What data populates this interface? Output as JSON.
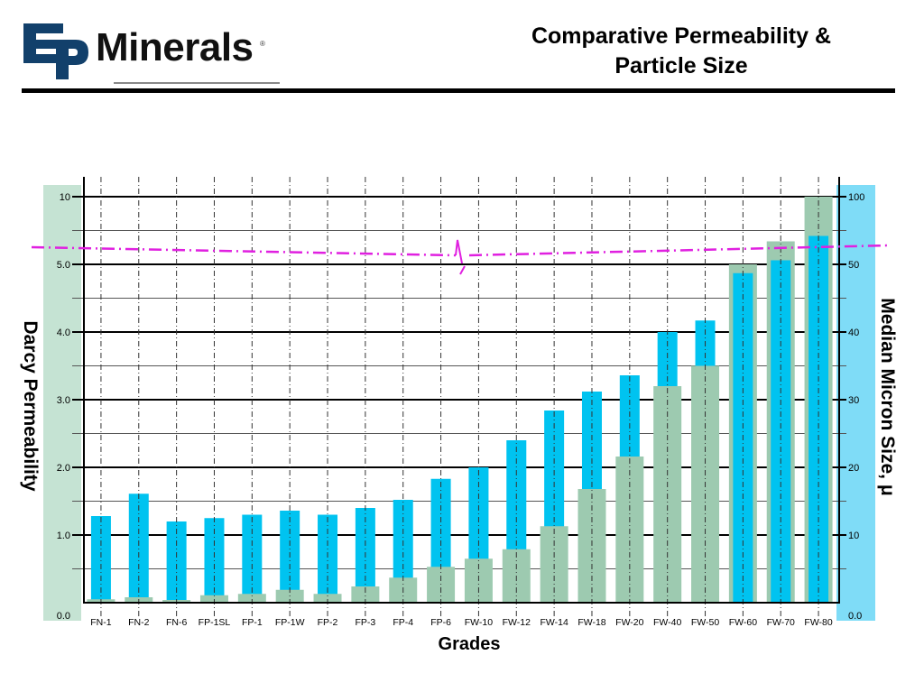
{
  "header": {
    "logo_mark": "EP",
    "logo_text": "Minerals",
    "logo_registered": "®",
    "title_line1": "Comparative Permeability &",
    "title_line2": "Particle Size"
  },
  "colors": {
    "permeability_bar": "#9dcab0",
    "micron_bar": "#00c3f0",
    "left_axis_band": "#c5e3d3",
    "right_axis_band": "#7fdcf7",
    "reference_line": "#e020e0",
    "logo_blue": "#12406b"
  },
  "chart_data": {
    "type": "bar",
    "title": "Comparative Permeability & Particle Size",
    "xlabel": "Grades",
    "ylabel": "Darcy Permeability",
    "ylabel_right": "Median Micron Size, μ",
    "grid": true,
    "categories": [
      "FN-1",
      "FN-2",
      "FN-6",
      "FP-1SL",
      "FP-1",
      "FP-1W",
      "FP-2",
      "FP-3",
      "FP-4",
      "FP-6",
      "FW-10",
      "FW-12",
      "FW-14",
      "FW-18",
      "FW-20",
      "FW-40",
      "FW-50",
      "FW-60",
      "FW-70",
      "FW-80"
    ],
    "left_axis": {
      "tick_labels": [
        "0.0",
        "1.0",
        "2.0",
        "3.0",
        "4.0",
        "5.0",
        "10"
      ],
      "tick_values": [
        0,
        1,
        2,
        3,
        4,
        5,
        10
      ],
      "ylim": [
        0,
        10
      ],
      "note": "broken scale: linear 0-5, then 5 to 10 in one step"
    },
    "right_axis": {
      "tick_labels": [
        "0.0",
        "10",
        "20",
        "30",
        "40",
        "50",
        "100"
      ],
      "tick_values": [
        0,
        10,
        20,
        30,
        40,
        50,
        100
      ],
      "ylim": [
        0,
        100
      ],
      "note": "broken scale: linear 0-50, then 50 to 100 in one step"
    },
    "series": [
      {
        "name": "Darcy Permeability",
        "axis": "left",
        "values": [
          0.05,
          0.08,
          0.04,
          0.11,
          0.13,
          0.19,
          0.13,
          0.24,
          0.37,
          0.53,
          0.65,
          0.79,
          1.13,
          1.68,
          2.16,
          3.2,
          3.5,
          5.0,
          6.7,
          10.0
        ]
      },
      {
        "name": "Median Micron Size",
        "axis": "right",
        "values": [
          12.8,
          16.1,
          12.0,
          12.5,
          13.0,
          13.6,
          13.0,
          14.0,
          15.2,
          18.3,
          20.0,
          24.0,
          28.4,
          31.2,
          33.6,
          40.0,
          41.7,
          48.7,
          53.0,
          71.0
        ]
      }
    ],
    "annotations": [
      "scale break marker (dash-dot reference line between 5.0 and 10 / 50 and 100)"
    ]
  }
}
